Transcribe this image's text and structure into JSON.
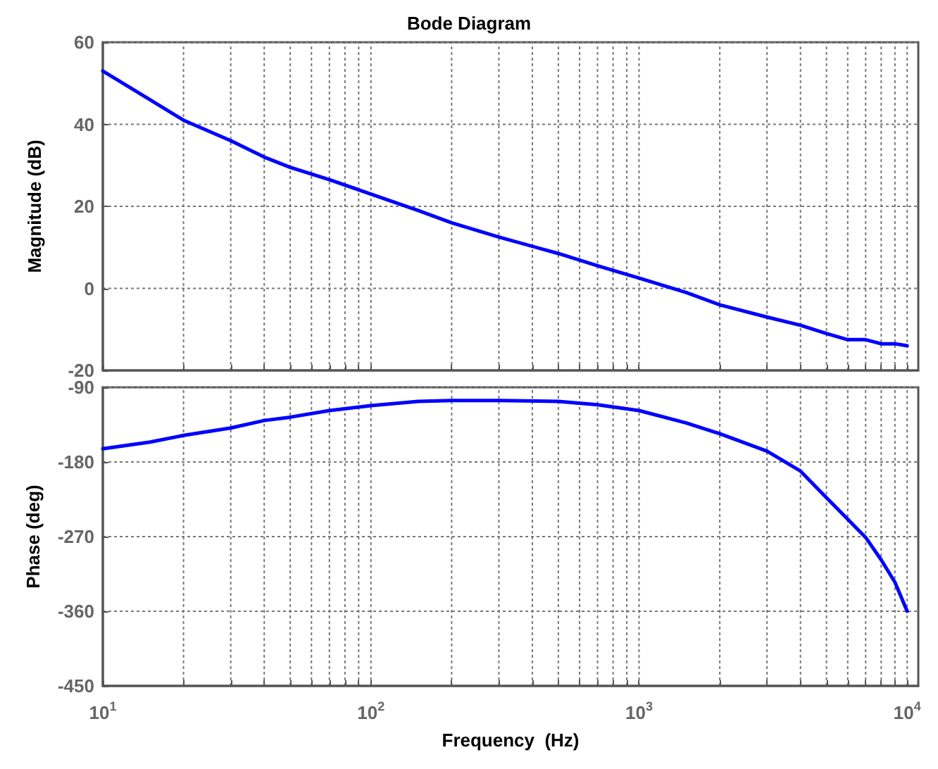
{
  "chart_data": [
    {
      "type": "line",
      "title": "Bode Diagram",
      "ylabel": "Magnitude (dB)",
      "x": [
        10,
        15,
        20,
        30,
        40,
        50,
        70,
        100,
        150,
        200,
        300,
        500,
        700,
        1000,
        1500,
        2000,
        3000,
        4000,
        5000,
        6000,
        7000,
        8000,
        9000,
        10000
      ],
      "series": [
        {
          "color": "#0000ff",
          "values": [
            53,
            46,
            41,
            36,
            32,
            29.5,
            26.5,
            23,
            19,
            16,
            12.5,
            8.5,
            5.5,
            2.5,
            -1,
            -4,
            -7,
            -9,
            -11,
            -12.5,
            -12.5,
            -13.5,
            -13.5,
            -14
          ]
        }
      ],
      "xlim": [
        10,
        11000
      ],
      "xticks": [
        {
          "value": 10,
          "label": null
        },
        {
          "value": 20,
          "label": null
        },
        {
          "value": 30,
          "label": null
        },
        {
          "value": 40,
          "label": null
        },
        {
          "value": 50,
          "label": null
        },
        {
          "value": 60,
          "label": null
        },
        {
          "value": 70,
          "label": null
        },
        {
          "value": 80,
          "label": null
        },
        {
          "value": 90,
          "label": null
        },
        {
          "value": 100,
          "label": null
        },
        {
          "value": 200,
          "label": null
        },
        {
          "value": 300,
          "label": null
        },
        {
          "value": 400,
          "label": null
        },
        {
          "value": 500,
          "label": null
        },
        {
          "value": 600,
          "label": null
        },
        {
          "value": 700,
          "label": null
        },
        {
          "value": 800,
          "label": null
        },
        {
          "value": 900,
          "label": null
        },
        {
          "value": 1000,
          "label": null
        },
        {
          "value": 2000,
          "label": null
        },
        {
          "value": 3000,
          "label": null
        },
        {
          "value": 4000,
          "label": null
        },
        {
          "value": 5000,
          "label": null
        },
        {
          "value": 6000,
          "label": null
        },
        {
          "value": 7000,
          "label": null
        },
        {
          "value": 8000,
          "label": null
        },
        {
          "value": 9000,
          "label": null
        },
        {
          "value": 10000,
          "label": null
        }
      ],
      "ylim": [
        -20,
        60
      ],
      "yticks": [
        -20,
        0,
        20,
        40,
        60
      ],
      "log": "x",
      "grid": true,
      "tick_labels": "y"
    },
    {
      "type": "line",
      "xlabel": "Frequency  (Hz)",
      "ylabel": "Phase (deg)",
      "x": [
        10,
        15,
        20,
        30,
        40,
        50,
        70,
        100,
        150,
        200,
        300,
        500,
        700,
        1000,
        1500,
        2000,
        3000,
        4000,
        5000,
        6000,
        7000,
        8000,
        9000,
        10000
      ],
      "series": [
        {
          "color": "#0000ff",
          "values": [
            -164,
            -156,
            -148,
            -139,
            -130,
            -126,
            -118,
            -112,
            -107,
            -106,
            -106,
            -107,
            -111,
            -118,
            -133,
            -146,
            -167,
            -191,
            -223,
            -249,
            -271,
            -298,
            -325,
            -360
          ]
        }
      ],
      "xlim": [
        10,
        11000
      ],
      "xticks": [
        {
          "value": 10,
          "label": "10$^{1}$"
        },
        {
          "value": 20,
          "label": null
        },
        {
          "value": 30,
          "label": null
        },
        {
          "value": 40,
          "label": null
        },
        {
          "value": 50,
          "label": null
        },
        {
          "value": 60,
          "label": null
        },
        {
          "value": 70,
          "label": null
        },
        {
          "value": 80,
          "label": null
        },
        {
          "value": 90,
          "label": null
        },
        {
          "value": 100,
          "label": "10$^{2}$"
        },
        {
          "value": 200,
          "label": null
        },
        {
          "value": 300,
          "label": null
        },
        {
          "value": 400,
          "label": null
        },
        {
          "value": 500,
          "label": null
        },
        {
          "value": 600,
          "label": null
        },
        {
          "value": 700,
          "label": null
        },
        {
          "value": 800,
          "label": null
        },
        {
          "value": 900,
          "label": null
        },
        {
          "value": 1000,
          "label": "10$^{3}$"
        },
        {
          "value": 2000,
          "label": null
        },
        {
          "value": 3000,
          "label": null
        },
        {
          "value": 4000,
          "label": null
        },
        {
          "value": 5000,
          "label": null
        },
        {
          "value": 6000,
          "label": null
        },
        {
          "value": 7000,
          "label": null
        },
        {
          "value": 8000,
          "label": null
        },
        {
          "value": 9000,
          "label": null
        },
        {
          "value": 10000,
          "label": "10$^{4}$"
        }
      ],
      "ylim": [
        -450,
        -90
      ],
      "yticks": [
        -450,
        -360,
        -270,
        -180,
        -90
      ],
      "log": "x",
      "grid": true
    }
  ]
}
